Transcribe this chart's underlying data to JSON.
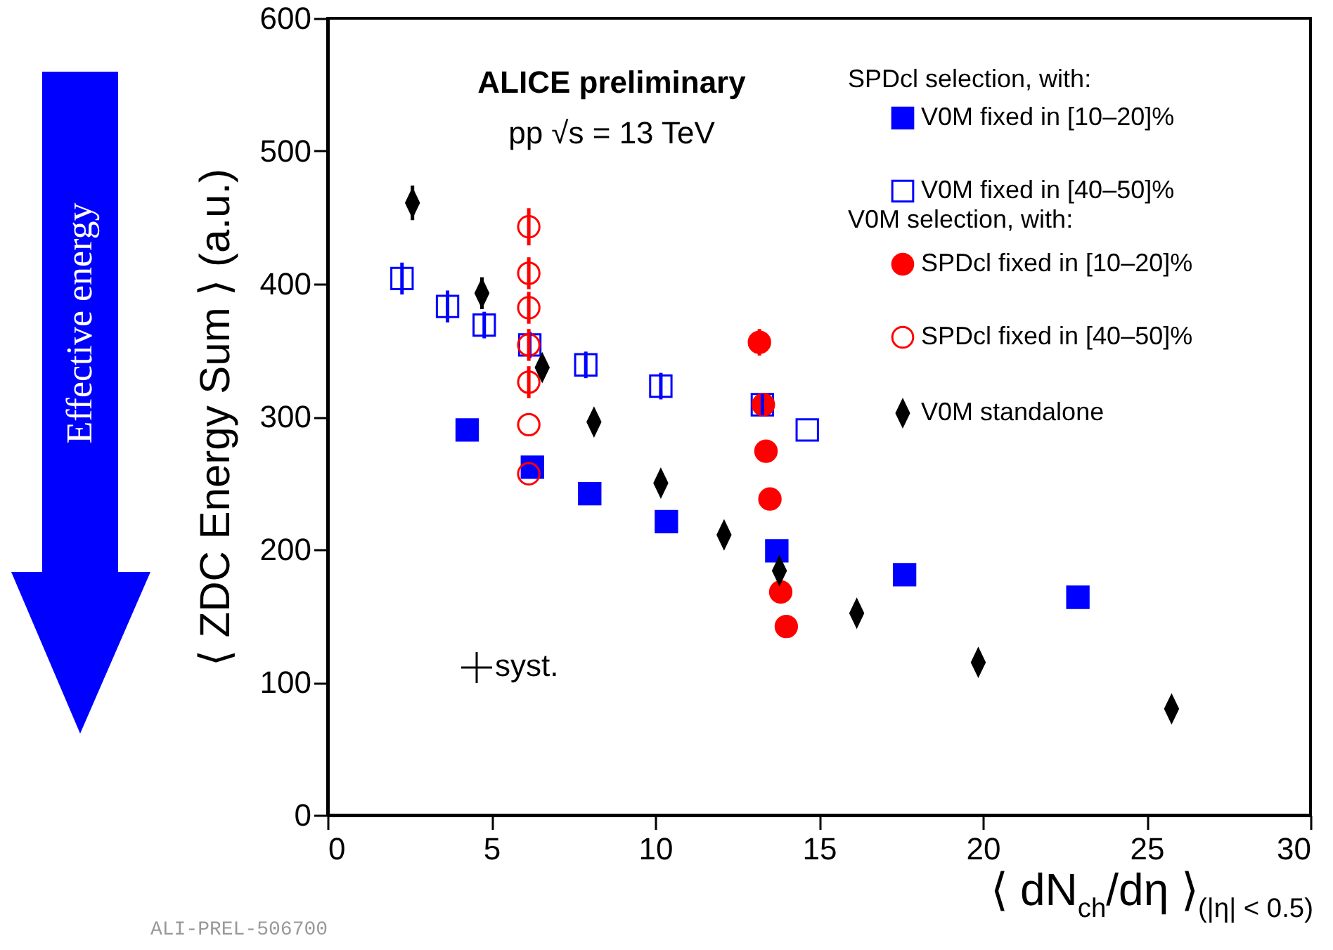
{
  "chart_data": {
    "type": "scatter",
    "xlabel": "⟨ dN$_{ch}$/dη ⟩$_{(|η| < 0.5)}$",
    "ylabel": "⟨ ZDC Energy Sum ⟩ (a.u.)",
    "xlim": [
      0,
      30
    ],
    "xticks": [
      0,
      5,
      10,
      15,
      20,
      25,
      30
    ],
    "ylim": [
      0,
      600
    ],
    "yticks": [
      0,
      100,
      200,
      300,
      400,
      500,
      600
    ],
    "legend": "top right",
    "annotations": [
      "ALICE preliminary",
      "pp √s = 13 TeV",
      "SPDcl selection, with:",
      "V0M selection, with:",
      "syst.",
      "Effective energy",
      "ALI-PREL-506700"
    ],
    "series": [
      {
        "name": "V0M fixed in [10–20]%",
        "color": "#0000ff",
        "marker": "square",
        "x": [
          4.26,
          6.25,
          8.0,
          10.34,
          13.71,
          17.61,
          22.9
        ],
        "values": [
          290,
          262,
          242,
          221,
          199,
          181,
          164
        ],
        "errors": [
          8,
          null,
          null,
          null,
          null,
          null,
          null
        ]
      },
      {
        "name": "V0M fixed in [40–50]%",
        "color": "#0000ff",
        "marker": "square",
        "x": [
          2.27,
          3.66,
          4.78,
          6.17,
          7.88,
          10.17,
          13.27,
          14.64
        ],
        "values": [
          404,
          383,
          369,
          354,
          339,
          323,
          309,
          290
        ],
        "errors": [
          12,
          12,
          10,
          10,
          10,
          10,
          8,
          null
        ]
      },
      {
        "name": "SPDcl fixed in [10–20]%",
        "color": "#ff0000",
        "marker": "circle",
        "x": [
          13.18,
          13.3,
          13.38,
          13.5,
          13.83,
          14.0
        ],
        "values": [
          356,
          309,
          274,
          238,
          168,
          142
        ],
        "errors": [
          10,
          null,
          null,
          null,
          null,
          null
        ]
      },
      {
        "name": "SPDcl fixed in [40–50]%",
        "color": "#ff0000",
        "marker": "circle",
        "x": [
          6.14,
          6.14,
          6.14,
          6.14,
          6.14,
          6.14,
          6.14
        ],
        "values": [
          443,
          408,
          382,
          354,
          326,
          294,
          257
        ],
        "errors": [
          14,
          12,
          12,
          12,
          12,
          null,
          null
        ]
      },
      {
        "name": "V0M standalone",
        "color": "#000000",
        "marker": "diamond",
        "x": [
          2.59,
          4.71,
          6.55,
          8.13,
          10.17,
          12.1,
          13.79,
          16.15,
          19.86,
          25.76
        ],
        "values": [
          461,
          393,
          337,
          296,
          250,
          211,
          184,
          152,
          115,
          80
        ],
        "errors": [
          13,
          12,
          null,
          null,
          null,
          null,
          null,
          null,
          null,
          null
        ]
      }
    ]
  }
}
